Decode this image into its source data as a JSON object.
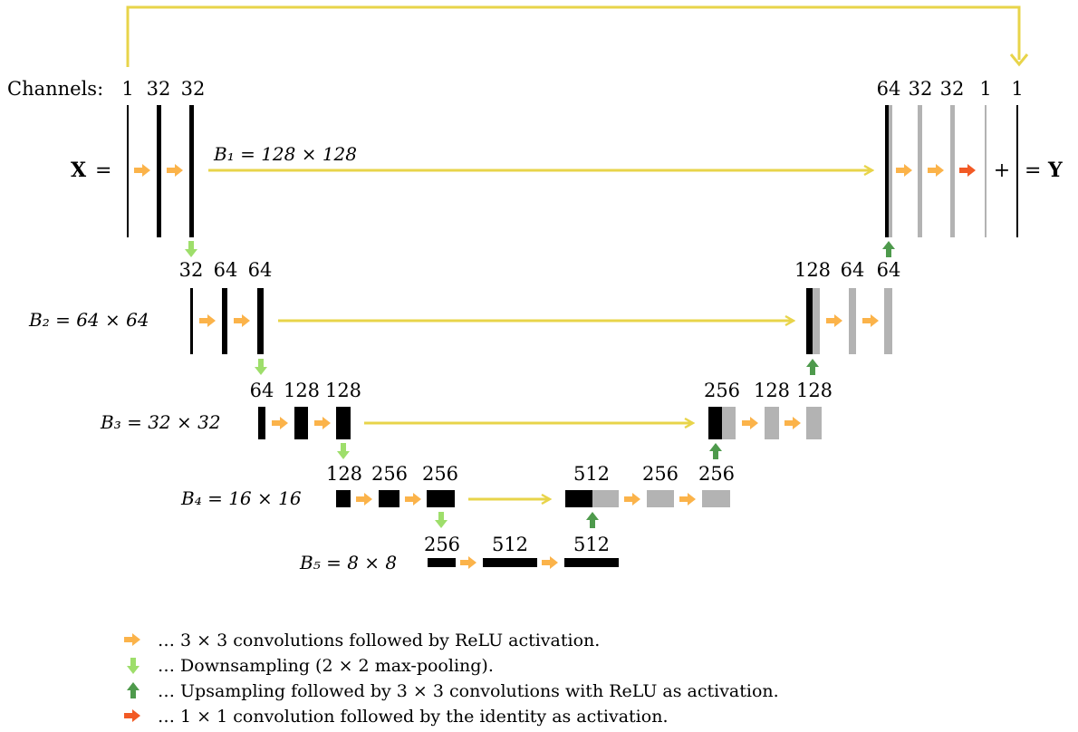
{
  "channels_label": "Channels:",
  "input_symbol": "X",
  "output_symbol": "Y",
  "equals_sign": "=",
  "plus_sign": "+",
  "levels": [
    {
      "label": "B₁ = 128 × 128"
    },
    {
      "label": "B₂ = 64 × 64"
    },
    {
      "label": "B₃ = 32 × 32"
    },
    {
      "label": "B₄ = 16 × 16"
    },
    {
      "label": "B₅ = 8 × 8"
    }
  ],
  "encoder_channels": [
    [
      "1",
      "32",
      "32"
    ],
    [
      "32",
      "64",
      "64"
    ],
    [
      "64",
      "128",
      "128"
    ],
    [
      "128",
      "256",
      "256"
    ]
  ],
  "bottleneck_channels": [
    "256",
    "512",
    "512"
  ],
  "decoder_channels": [
    [
      "64",
      "32",
      "32",
      "1",
      "1"
    ],
    [
      "128",
      "64",
      "64"
    ],
    [
      "256",
      "128",
      "128"
    ],
    [
      "512",
      "256",
      "256"
    ]
  ],
  "colors": {
    "skip": "#e8d44a",
    "conv": "#fbb34a",
    "down": "#9ede6b",
    "up": "#4e9a4c",
    "final": "#f25a25",
    "encoder_block": "#000000",
    "decoder_block": "#b3b3b3"
  },
  "legend": [
    {
      "icon": "orange-right-arrow-icon",
      "text": "… 3 × 3 convolutions followed by ReLU activation."
    },
    {
      "icon": "light-green-down-arrow-icon",
      "text": "… Downsampling (2 × 2 max-pooling)."
    },
    {
      "icon": "dark-green-up-arrow-icon",
      "text": "… Upsampling followed by 3 × 3 convolutions with ReLU as activation."
    },
    {
      "icon": "red-right-arrow-icon",
      "text": "… 1 × 1 convolution followed by the identity as activation."
    }
  ]
}
